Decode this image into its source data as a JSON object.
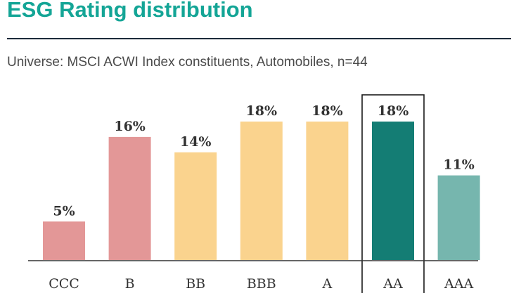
{
  "header": {
    "title": "ESG Rating distribution",
    "subtitle": "Universe: MSCI ACWI Index constituents, Automobiles, n=44"
  },
  "chart_data": {
    "type": "bar",
    "title": "ESG Rating distribution",
    "subtitle": "Universe: MSCI ACWI Index constituents, Automobiles, n=44",
    "categories": [
      "CCC",
      "B",
      "BB",
      "BBB",
      "A",
      "AA",
      "AAA"
    ],
    "values": [
      5,
      16,
      14,
      18,
      18,
      18,
      11
    ],
    "labels": [
      "5%",
      "16%",
      "14%",
      "18%",
      "18%",
      "18%",
      "11%"
    ],
    "unit": "%",
    "ylim": [
      0,
      18
    ],
    "xlabel": "",
    "ylabel": "",
    "grid": false,
    "highlighted_category": "AA",
    "colors": [
      "#e39797",
      "#e39797",
      "#fad38e",
      "#fad38e",
      "#fad38e",
      "#147d74",
      "#76b6ae"
    ]
  }
}
